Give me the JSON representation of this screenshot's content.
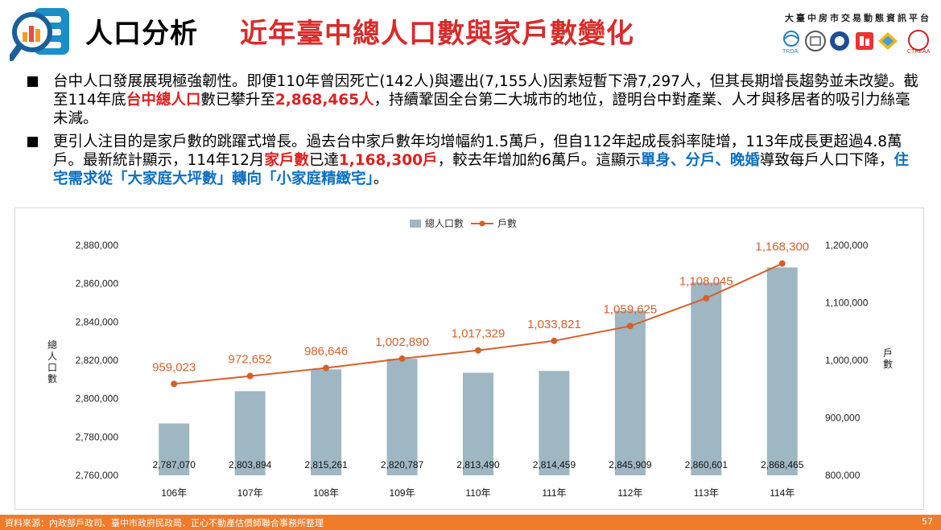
{
  "header": {
    "title_main": "人口分析",
    "title_sub": "近年臺中總人口數與家戶數變化",
    "platform": "大臺中房市交易動態資訊平台",
    "partner_logo_text": "TRDA"
  },
  "bullets": [
    {
      "parts": [
        {
          "text": "台中人口發展展現極強韌性。即便110年曾因死亡(142人)與遷出(7,155人)因素短暫下滑7,297人，但其長期增長趨勢並未改變。截至114年底",
          "style": ""
        },
        {
          "text": "台中總人口",
          "style": "red"
        },
        {
          "text": "數已攀升至",
          "style": ""
        },
        {
          "text": "2,868,465人",
          "style": "red"
        },
        {
          "text": "，持續鞏固全台第二大城市的地位，證明台中對產業、人才與移居者的吸引力絲毫未減。",
          "style": ""
        }
      ]
    },
    {
      "parts": [
        {
          "text": "更引人注目的是家戶數的跳躍式增長。過去台中家戶數年均增幅約1.5萬戶，但自112年起成長斜率陡增，113年成長更超過4.8萬戶。最新統計顯示，114年12月",
          "style": ""
        },
        {
          "text": "家戶數",
          "style": "red"
        },
        {
          "text": "已達",
          "style": ""
        },
        {
          "text": "1,168,300戶",
          "style": "red"
        },
        {
          "text": "，較去年增加約6萬戶。這顯示",
          "style": ""
        },
        {
          "text": "單身、分戶、晚婚",
          "style": "blue"
        },
        {
          "text": "導致每戶人口下降，",
          "style": ""
        },
        {
          "text": "住宅需求從「大家庭大坪數」轉向「小家庭精緻宅」",
          "style": "blue"
        },
        {
          "text": "。",
          "style": ""
        }
      ]
    }
  ],
  "chart_data": {
    "type": "bar",
    "categories": [
      "106年",
      "107年",
      "108年",
      "109年",
      "110年",
      "111年",
      "112年",
      "113年",
      "114年"
    ],
    "series": [
      {
        "name": "總人口數",
        "type": "bar",
        "axis": "left",
        "color": "#9fb7c2",
        "values": [
          2787070,
          2803894,
          2815261,
          2820787,
          2813490,
          2814459,
          2845909,
          2860601,
          2868465
        ],
        "labels": [
          "2,787,070",
          "2,803,894",
          "2,815,261",
          "2,820,787",
          "2,813,490",
          "2,814,459",
          "2,845,909",
          "2,860,601",
          "2,868,465"
        ]
      },
      {
        "name": "戶數",
        "type": "line",
        "axis": "right",
        "color": "#d5602a",
        "values": [
          959023,
          972652,
          986646,
          1002890,
          1017329,
          1033821,
          1059625,
          1108045,
          1168300
        ],
        "labels": [
          "959,023",
          "972,652",
          "986,646",
          "1,002,890",
          "1,017,329",
          "1,033,821",
          "1,059,625",
          "1,108,045",
          "1,168,300"
        ]
      }
    ],
    "ylabel": "總人口數",
    "y2label": "戶數",
    "ylim": [
      2760000,
      2880000
    ],
    "yticks": [
      "2,760,000",
      "2,780,000",
      "2,800,000",
      "2,820,000",
      "2,840,000",
      "2,860,000",
      "2,880,000"
    ],
    "y2lim": [
      800000,
      1200000
    ],
    "y2ticks": [
      "800,000",
      "900,000",
      "1,000,000",
      "1,100,000",
      "1,200,000"
    ],
    "legend": "top-center",
    "grid": false
  },
  "footer": {
    "source": "資料來源：內政部戶政司、臺中市政府民政局．正心不動產估價師聯合事務所整理",
    "page": "57"
  },
  "colors": {
    "accent_red": "#d92b2b",
    "accent_blue": "#0d6fbf",
    "footer": "#f07b2a"
  }
}
